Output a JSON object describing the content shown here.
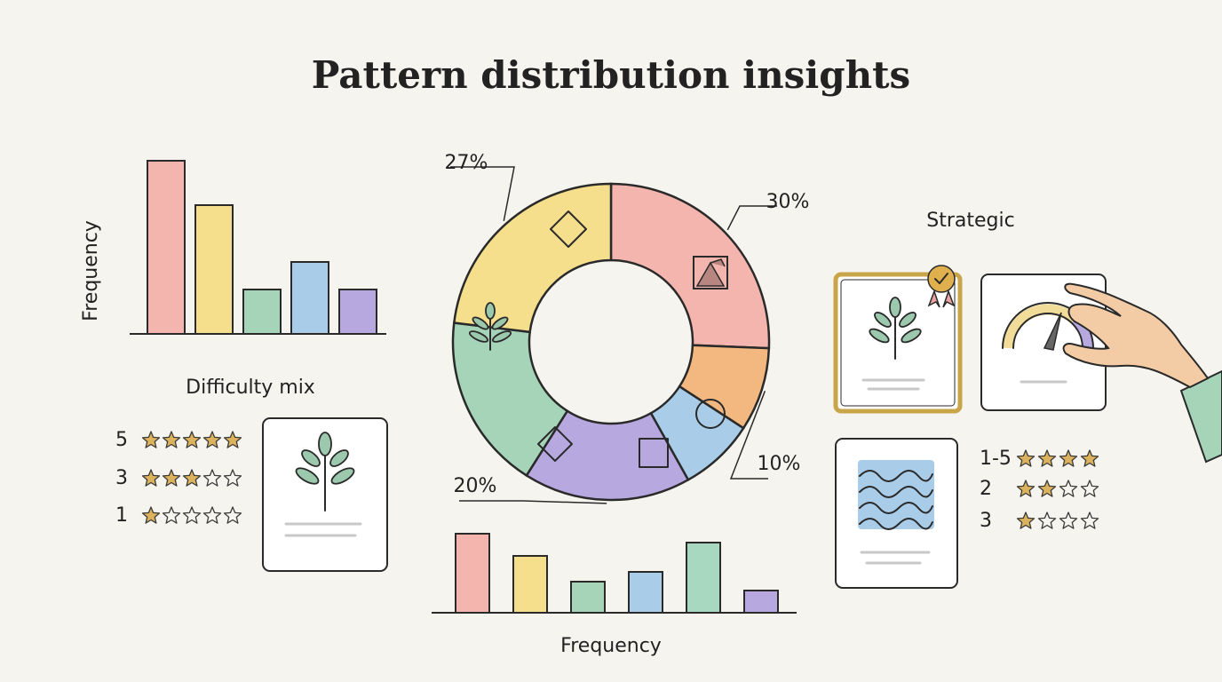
{
  "title": "Pattern distribution insights",
  "chart_data": [
    {
      "type": "bar",
      "y_label": "Frequency",
      "categories": [
        null,
        null,
        null,
        null,
        null
      ],
      "values": [
        195,
        145,
        50,
        81,
        50
      ],
      "colors": [
        "#f4b5ae",
        "#f5df8c",
        "#a5d4b9",
        "#a9cde8",
        "#b7a8e0"
      ],
      "ylim": [
        0,
        200
      ]
    },
    {
      "type": "donut",
      "values": [
        30,
        10,
        9,
        20,
        21,
        27
      ],
      "value_labels": [
        "30%",
        "10%",
        null,
        "20%",
        null,
        "27%"
      ],
      "colors": [
        "#f4b5ae",
        "#f3b87f",
        "#a9cde8",
        "#b7a8e0",
        "#a5d4b9",
        "#f5df8c"
      ]
    },
    {
      "type": "bar",
      "x_label": "Frequency",
      "categories": [
        null,
        null,
        null,
        null,
        null,
        null
      ],
      "values": [
        89,
        64,
        35,
        46,
        79,
        25
      ],
      "colors": [
        "#f4b5ae",
        "#f5df8c",
        "#a5d4b9",
        "#a9cde8",
        "#a8d8c0",
        "#b7a8e0"
      ],
      "ylim": [
        0,
        100
      ]
    }
  ],
  "difficulty_mix": {
    "title": "Difficulty mix",
    "max_stars": 5,
    "rows": [
      {
        "label": "5",
        "stars": 5
      },
      {
        "label": "3",
        "stars": 3
      },
      {
        "label": "1",
        "stars": 1
      }
    ]
  },
  "strategic": {
    "title": "Strategic",
    "max_stars": 4,
    "rows": [
      {
        "label": "1-5",
        "stars": 4
      },
      {
        "label": "2",
        "stars": 2
      },
      {
        "label": "3",
        "stars": 1
      }
    ]
  }
}
